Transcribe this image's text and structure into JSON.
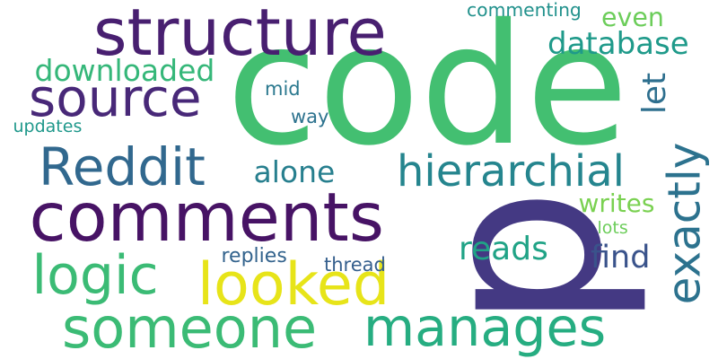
{
  "words": [
    {
      "id": "code",
      "text": "code",
      "color": "#43bf71",
      "orientation": "horizontal"
    },
    {
      "id": "p",
      "text": "p",
      "color": "#443983",
      "orientation": "vertical"
    },
    {
      "id": "structure",
      "text": "structure",
      "color": "#481f70",
      "orientation": "horizontal"
    },
    {
      "id": "comments",
      "text": "comments",
      "color": "#471365",
      "orientation": "horizontal"
    },
    {
      "id": "someone",
      "text": "someone",
      "color": "#3bbb75",
      "orientation": "horizontal"
    },
    {
      "id": "source",
      "text": "source",
      "color": "#482878",
      "orientation": "horizontal"
    },
    {
      "id": "reddit",
      "text": "Reddit",
      "color": "#31688e",
      "orientation": "horizontal"
    },
    {
      "id": "exactly",
      "text": "exactly",
      "color": "#2c728e",
      "orientation": "vertical"
    },
    {
      "id": "manages",
      "text": "manages",
      "color": "#26ad81",
      "orientation": "horizontal"
    },
    {
      "id": "looked",
      "text": "looked",
      "color": "#e7e419",
      "orientation": "horizontal"
    },
    {
      "id": "logic",
      "text": "logic",
      "color": "#3bbb75",
      "orientation": "horizontal"
    },
    {
      "id": "hierarchial",
      "text": "hierarchial",
      "color": "#25858e",
      "orientation": "horizontal"
    },
    {
      "id": "downloaded",
      "text": "downloaded",
      "color": "#35b779",
      "orientation": "horizontal"
    },
    {
      "id": "database",
      "text": "database",
      "color": "#1f9a8a",
      "orientation": "horizontal"
    },
    {
      "id": "even",
      "text": "even",
      "color": "#6ccd5a",
      "orientation": "horizontal"
    },
    {
      "id": "alone",
      "text": "alone",
      "color": "#277f8e",
      "orientation": "horizontal"
    },
    {
      "id": "reads",
      "text": "reads",
      "color": "#20a386",
      "orientation": "horizontal"
    },
    {
      "id": "find",
      "text": "find",
      "color": "#3a538b",
      "orientation": "horizontal"
    },
    {
      "id": "let",
      "text": "let",
      "color": "#2e6f8e",
      "orientation": "vertical"
    },
    {
      "id": "writes",
      "text": "writes",
      "color": "#7ad151",
      "orientation": "horizontal"
    },
    {
      "id": "commenting",
      "text": "commenting",
      "color": "#21918c",
      "orientation": "horizontal"
    },
    {
      "id": "updates",
      "text": "updates",
      "color": "#1f988b",
      "orientation": "horizontal"
    },
    {
      "id": "mid",
      "text": "mid",
      "color": "#2a788e",
      "orientation": "horizontal"
    },
    {
      "id": "way",
      "text": "way",
      "color": "#2c728e",
      "orientation": "horizontal"
    },
    {
      "id": "replies",
      "text": "replies",
      "color": "#33638d",
      "orientation": "horizontal"
    },
    {
      "id": "thread",
      "text": "thread",
      "color": "#355f8d",
      "orientation": "horizontal"
    },
    {
      "id": "lots",
      "text": "lots",
      "color": "#6ccd5a",
      "orientation": "horizontal"
    }
  ]
}
